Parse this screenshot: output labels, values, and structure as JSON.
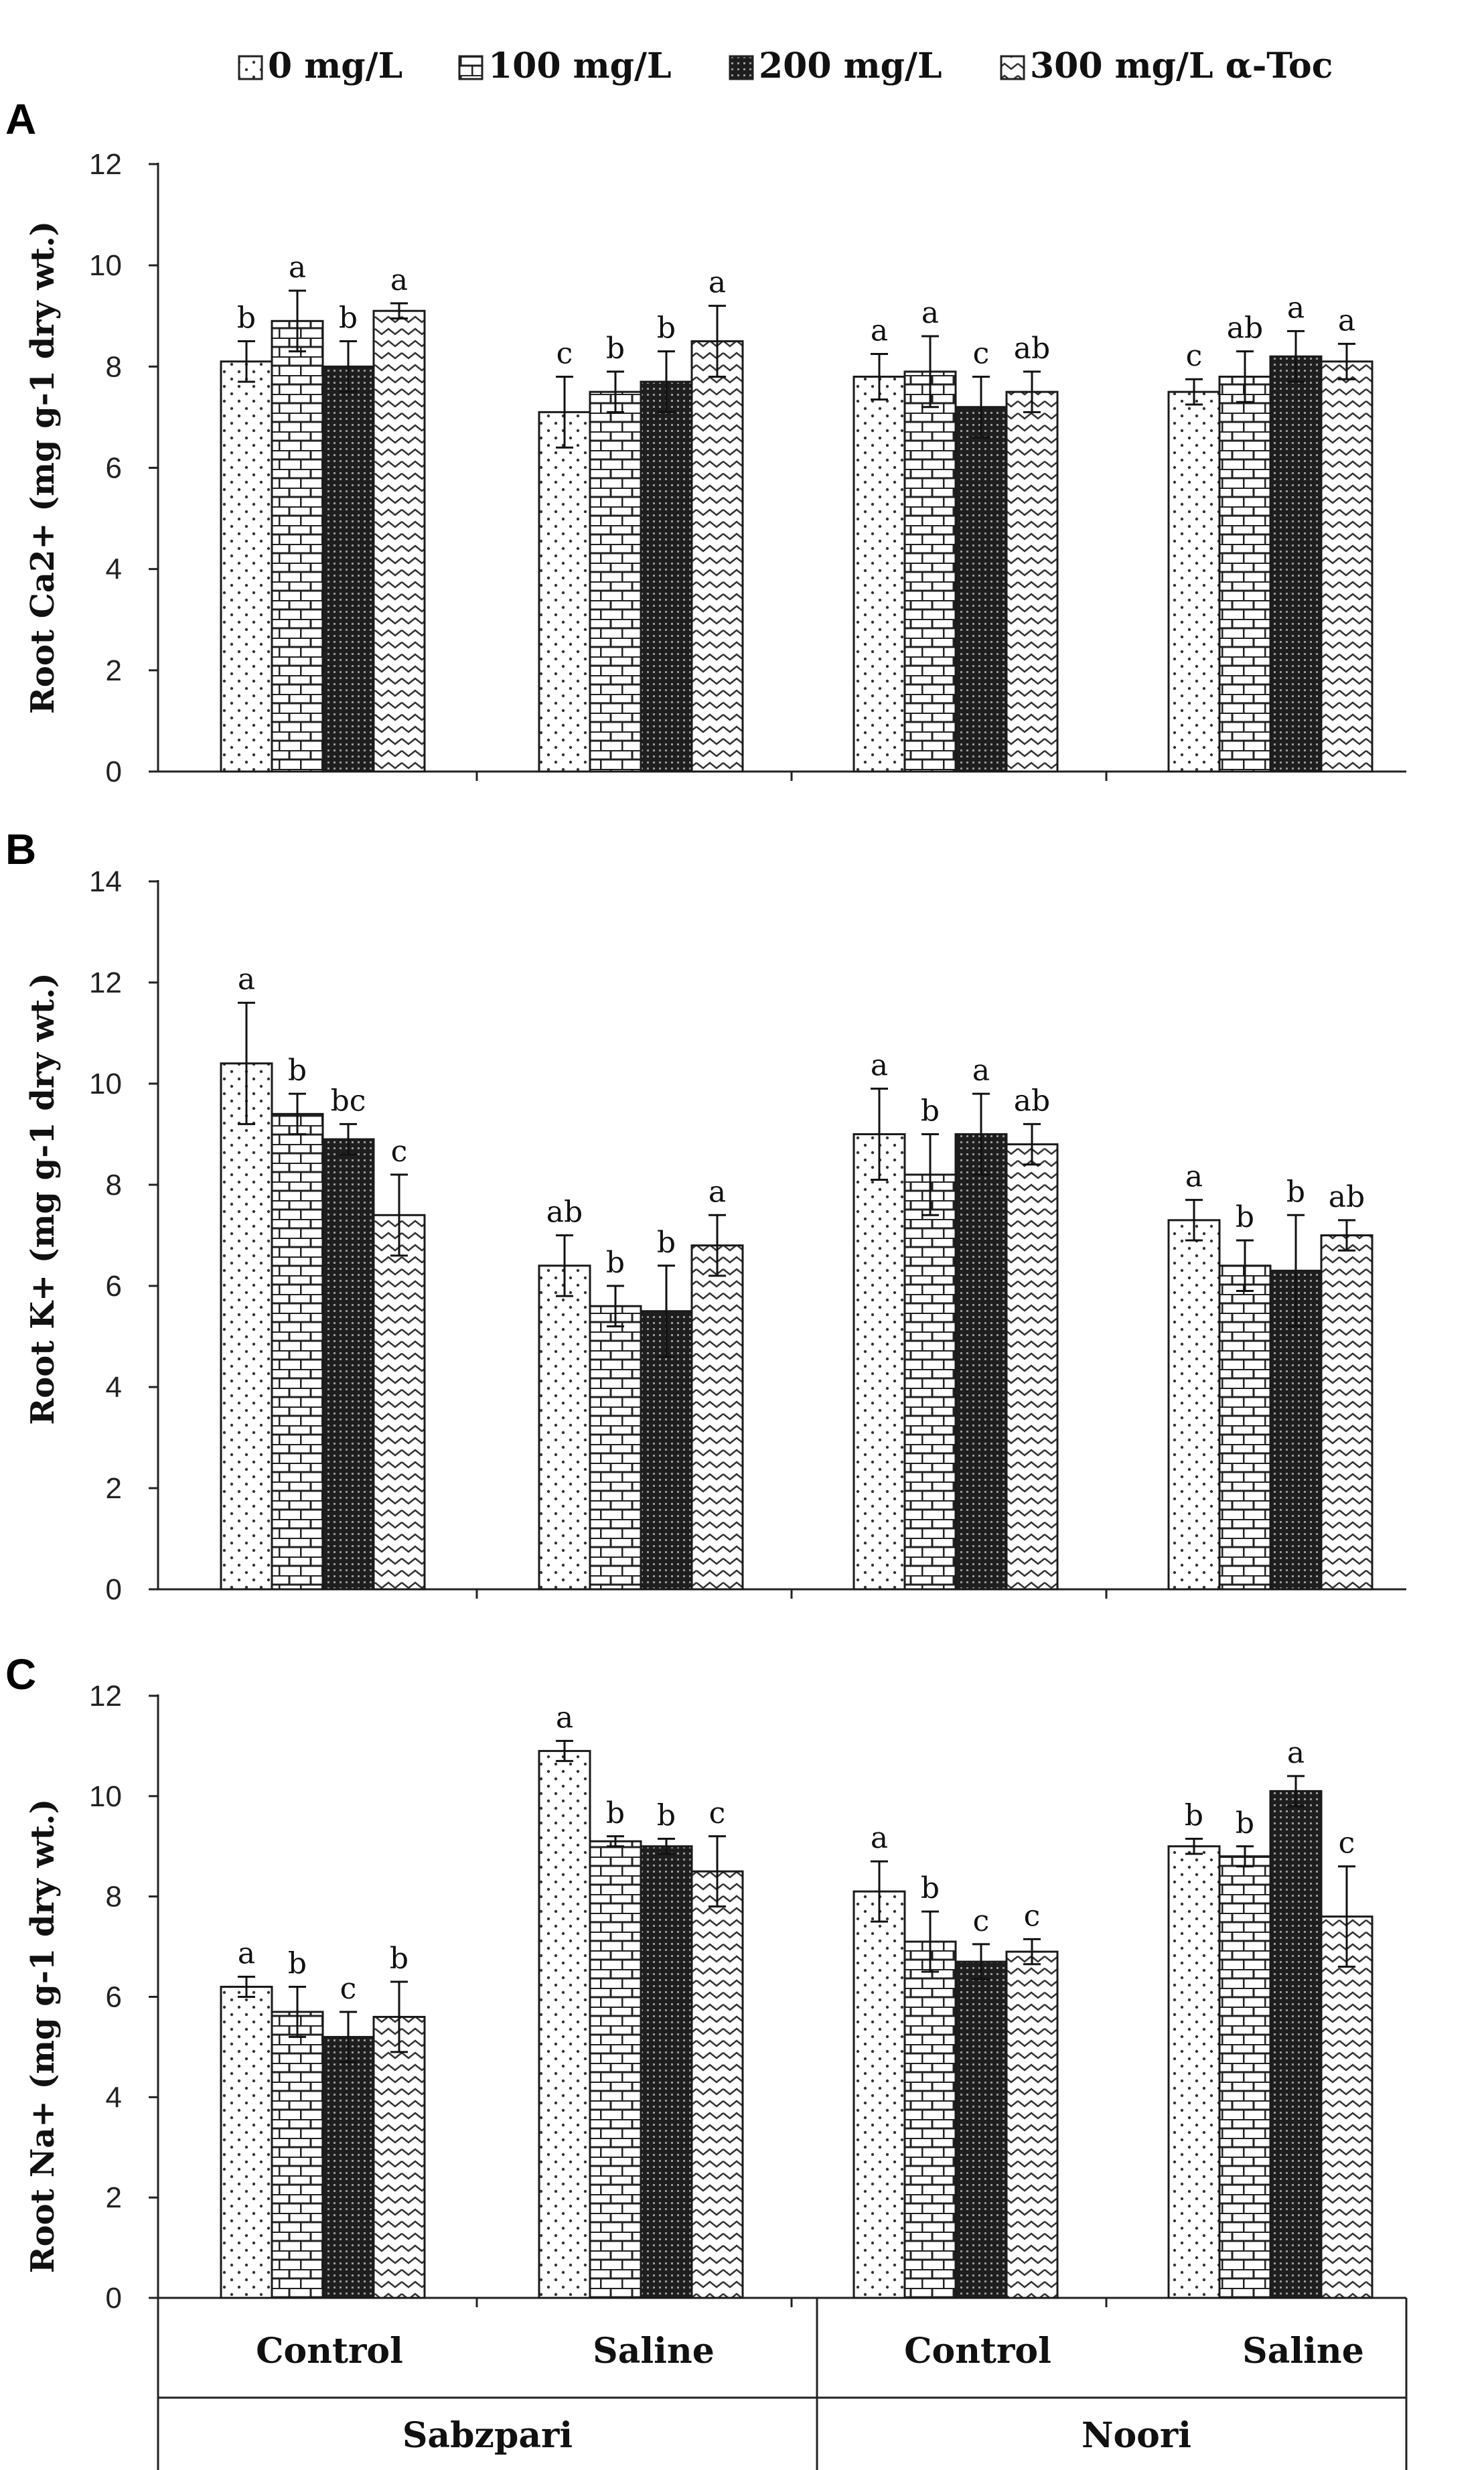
{
  "legend": [
    {
      "label": "0 mg/L",
      "pattern": "dots"
    },
    {
      "label": "100 mg/L",
      "pattern": "brick"
    },
    {
      "label": "200 mg/L",
      "pattern": "dense"
    },
    {
      "label": "300 mg/L α-Toc",
      "pattern": "wave"
    }
  ],
  "x_axis": {
    "groups": [
      "Control",
      "Saline",
      "Control",
      "Saline"
    ],
    "cultivars": [
      "Sabzpari",
      "Noori"
    ]
  },
  "colors": {
    "axis": "#222222",
    "bar_stroke": "#1a1a1a",
    "fill_dark": "#222222"
  },
  "chart_data": [
    {
      "type": "bar",
      "panel": "A",
      "ylabel": "Root Ca2+ (mg g-1 dry wt.)",
      "ylim": [
        0,
        12
      ],
      "yticks": [
        0,
        2,
        4,
        6,
        8,
        10,
        12
      ],
      "categories": [
        "Control",
        "Saline",
        "Control",
        "Saline"
      ],
      "series": [
        {
          "name": "0 mg/L",
          "values": [
            8.1,
            7.1,
            7.8,
            7.5
          ],
          "errors": [
            0.4,
            0.7,
            0.45,
            0.25
          ],
          "letters": [
            "b",
            "c",
            "a",
            "c"
          ]
        },
        {
          "name": "100 mg/L",
          "values": [
            8.9,
            7.5,
            7.9,
            7.8
          ],
          "errors": [
            0.6,
            0.4,
            0.7,
            0.5
          ],
          "letters": [
            "a",
            "b",
            "a",
            "ab"
          ]
        },
        {
          "name": "200 mg/L",
          "values": [
            8.0,
            7.7,
            7.2,
            8.2
          ],
          "errors": [
            0.5,
            0.6,
            0.6,
            0.5
          ],
          "letters": [
            "b",
            "b",
            "c",
            "a"
          ]
        },
        {
          "name": "300 mg/L α-Toc",
          "values": [
            9.1,
            8.5,
            7.5,
            8.1
          ],
          "errors": [
            0.15,
            0.7,
            0.4,
            0.35
          ],
          "letters": [
            "a",
            "a",
            "ab",
            "a"
          ]
        }
      ]
    },
    {
      "type": "bar",
      "panel": "B",
      "ylabel": "Root K+ (mg g-1 dry wt.)",
      "ylim": [
        0,
        14
      ],
      "yticks": [
        0,
        2,
        4,
        6,
        8,
        10,
        12,
        14
      ],
      "categories": [
        "Control",
        "Saline",
        "Control",
        "Saline"
      ],
      "series": [
        {
          "name": "0 mg/L",
          "values": [
            10.4,
            6.4,
            9.0,
            7.3
          ],
          "errors": [
            1.2,
            0.6,
            0.9,
            0.4
          ],
          "letters": [
            "a",
            "ab",
            "a",
            "a"
          ]
        },
        {
          "name": "100 mg/L",
          "values": [
            9.4,
            5.6,
            8.2,
            6.4
          ],
          "errors": [
            0.4,
            0.4,
            0.8,
            0.5
          ],
          "letters": [
            "b",
            "b",
            "b",
            "b"
          ]
        },
        {
          "name": "200 mg/L",
          "values": [
            8.9,
            5.5,
            9.0,
            6.3
          ],
          "errors": [
            0.3,
            0.9,
            0.8,
            1.1
          ],
          "letters": [
            "bc",
            "b",
            "a",
            "b"
          ]
        },
        {
          "name": "300 mg/L α-Toc",
          "values": [
            7.4,
            6.8,
            8.8,
            7.0
          ],
          "errors": [
            0.8,
            0.6,
            0.4,
            0.3
          ],
          "letters": [
            "c",
            "a",
            "ab",
            "ab"
          ]
        }
      ]
    },
    {
      "type": "bar",
      "panel": "C",
      "ylabel": "Root Na+ (mg g-1 dry wt.)",
      "ylim": [
        0,
        12
      ],
      "yticks": [
        0,
        2,
        4,
        6,
        8,
        10,
        12
      ],
      "categories": [
        "Control",
        "Saline",
        "Control",
        "Saline"
      ],
      "series": [
        {
          "name": "0 mg/L",
          "values": [
            6.2,
            10.9,
            8.1,
            9.0
          ],
          "errors": [
            0.2,
            0.2,
            0.6,
            0.15
          ],
          "letters": [
            "a",
            "a",
            "a",
            "b"
          ]
        },
        {
          "name": "100 mg/L",
          "values": [
            5.7,
            9.1,
            7.1,
            8.8
          ],
          "errors": [
            0.5,
            0.1,
            0.6,
            0.2
          ],
          "letters": [
            "b",
            "b",
            "b",
            "b"
          ]
        },
        {
          "name": "200 mg/L",
          "values": [
            5.2,
            9.0,
            6.7,
            10.1
          ],
          "errors": [
            0.5,
            0.15,
            0.35,
            0.3
          ],
          "letters": [
            "c",
            "b",
            "c",
            "a"
          ]
        },
        {
          "name": "300 mg/L α-Toc",
          "values": [
            5.6,
            8.5,
            6.9,
            7.6
          ],
          "errors": [
            0.7,
            0.7,
            0.25,
            1.0
          ],
          "letters": [
            "b",
            "c",
            "c",
            "c"
          ]
        }
      ]
    }
  ]
}
